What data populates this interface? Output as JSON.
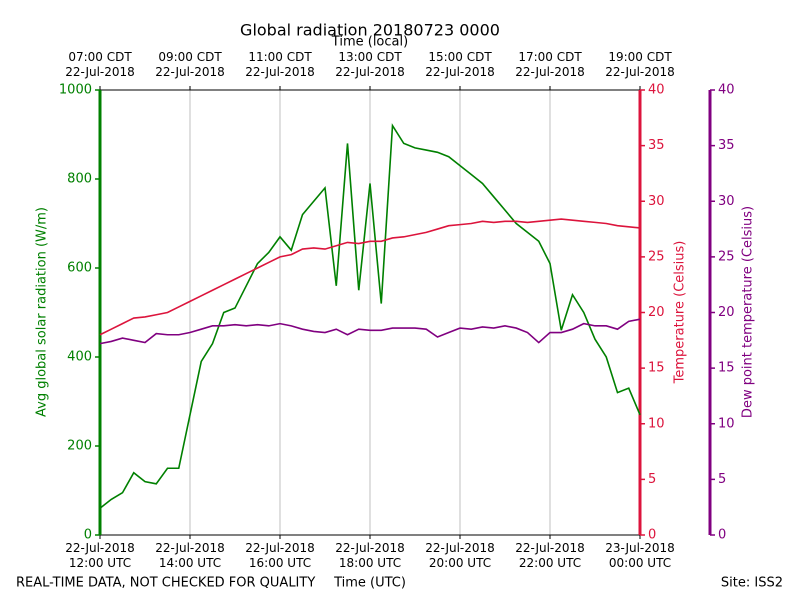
{
  "chart_data": {
    "type": "line",
    "title": "Global radiation 20180723 0000",
    "top_xlabel": "Time (local)",
    "xlabel": "Time (UTC)",
    "ylabel": "Avg global solar radiation (W/m)",
    "y2label": "Temperature (Celsius)",
    "y3label": "Dew point temperature (Celsius)",
    "footer_left": "REAL-TIME DATA, NOT CHECKED FOR QUALITY",
    "footer_right": "Site: ISS2",
    "x": [
      12,
      12.25,
      12.5,
      12.75,
      13,
      13.25,
      13.5,
      13.75,
      14,
      14.25,
      14.5,
      14.75,
      15,
      15.25,
      15.5,
      15.75,
      16,
      16.25,
      16.5,
      16.75,
      17,
      17.25,
      17.5,
      17.75,
      18,
      18.25,
      18.5,
      18.75,
      19,
      19.25,
      19.5,
      19.75,
      20,
      20.25,
      20.5,
      20.75,
      21,
      21.25,
      21.5,
      21.75,
      22,
      22.25,
      22.5,
      22.75,
      23,
      23.25,
      23.5,
      23.75,
      24
    ],
    "xlim": [
      12,
      24
    ],
    "xticks": [
      {
        "value": 12,
        "label": "22-Jul-2018\n12:00 UTC"
      },
      {
        "value": 14,
        "label": "22-Jul-2018\n14:00 UTC"
      },
      {
        "value": 16,
        "label": "22-Jul-2018\n16:00 UTC"
      },
      {
        "value": 18,
        "label": "22-Jul-2018\n18:00 UTC"
      },
      {
        "value": 20,
        "label": "22-Jul-2018\n20:00 UTC"
      },
      {
        "value": 22,
        "label": "22-Jul-2018\n22:00 UTC"
      },
      {
        "value": 24,
        "label": "23-Jul-2018\n00:00 UTC"
      }
    ],
    "top_xticks": [
      {
        "value": 12,
        "label": "07:00 CDT\n22-Jul-2018"
      },
      {
        "value": 14,
        "label": "09:00 CDT\n22-Jul-2018"
      },
      {
        "value": 16,
        "label": "11:00 CDT\n22-Jul-2018"
      },
      {
        "value": 18,
        "label": "13:00 CDT\n22-Jul-2018"
      },
      {
        "value": 20,
        "label": "15:00 CDT\n22-Jul-2018"
      },
      {
        "value": 22,
        "label": "17:00 CDT\n22-Jul-2018"
      },
      {
        "value": 24,
        "label": "19:00 CDT\n22-Jul-2018"
      }
    ],
    "ylim": [
      0,
      1000
    ],
    "yticks": [
      0,
      200,
      400,
      600,
      800,
      1000
    ],
    "y2lim": [
      0,
      40
    ],
    "y2ticks": [
      0,
      5,
      10,
      15,
      20,
      25,
      30,
      35,
      40
    ],
    "y3lim": [
      0,
      40
    ],
    "y3ticks": [
      0,
      5,
      10,
      15,
      20,
      25,
      30,
      35,
      40
    ],
    "grid": true,
    "series": [
      {
        "name": "Avg global solar radiation",
        "color": "#008000",
        "axis": "y",
        "values": [
          60,
          80,
          95,
          140,
          120,
          115,
          150,
          150,
          270,
          390,
          430,
          500,
          510,
          560,
          610,
          635,
          670,
          640,
          720,
          750,
          780,
          560,
          880,
          550,
          790,
          520,
          920,
          880,
          870,
          865,
          860,
          850,
          830,
          810,
          790,
          760,
          730,
          700,
          680,
          660,
          610,
          460,
          540,
          500,
          440,
          400,
          320,
          330,
          270
        ]
      },
      {
        "name": "Temperature",
        "color": "#dc143c",
        "axis": "y2",
        "values": [
          18,
          18.5,
          19,
          19.5,
          19.6,
          19.8,
          20,
          20.5,
          21,
          21.5,
          22,
          22.5,
          23,
          23.5,
          24,
          24.5,
          25,
          25.2,
          25.7,
          25.8,
          25.7,
          26,
          26.3,
          26.2,
          26.4,
          26.4,
          26.7,
          26.8,
          27,
          27.2,
          27.5,
          27.8,
          27.9,
          28,
          28.2,
          28.1,
          28.2,
          28.2,
          28.1,
          28.2,
          28.3,
          28.4,
          28.3,
          28.2,
          28.1,
          28,
          27.8,
          27.7,
          27.6
        ]
      },
      {
        "name": "Dew point temperature",
        "color": "#800080",
        "axis": "y3",
        "values": [
          17.2,
          17.4,
          17.7,
          17.5,
          17.3,
          18.1,
          18,
          18,
          18.2,
          18.5,
          18.8,
          18.8,
          18.9,
          18.8,
          18.9,
          18.8,
          19,
          18.8,
          18.5,
          18.3,
          18.2,
          18.5,
          18,
          18.5,
          18.4,
          18.4,
          18.6,
          18.6,
          18.6,
          18.5,
          17.8,
          18.2,
          18.6,
          18.5,
          18.7,
          18.6,
          18.8,
          18.6,
          18.2,
          17.3,
          18.2,
          18.2,
          18.5,
          19,
          18.8,
          18.8,
          18.5,
          19.2,
          19.4
        ]
      }
    ]
  }
}
